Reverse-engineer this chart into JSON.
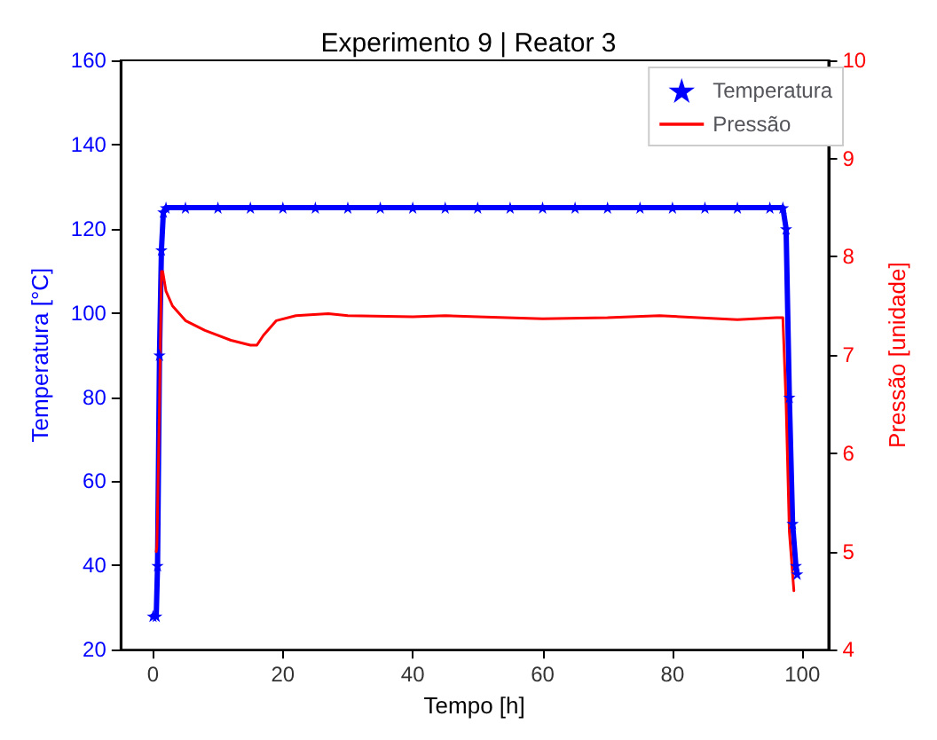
{
  "chart_data": {
    "type": "line",
    "title": "Experimento 9 | Reator 3",
    "xlabel": "Tempo [h]",
    "ylabel": "Temperatura [°C]",
    "y2label": "Pressão [unidade]",
    "xlim": [
      -5,
      104
    ],
    "xticks": [
      0,
      20,
      40,
      60,
      80,
      100
    ],
    "ylim": [
      20,
      160
    ],
    "yticks": [
      20,
      40,
      60,
      80,
      100,
      120,
      140,
      160
    ],
    "y2lim": [
      4,
      10
    ],
    "y2ticks": [
      4,
      5,
      6,
      7,
      8,
      9,
      10
    ],
    "legend": "top right",
    "grid": false,
    "series": [
      {
        "name": "Temperatura",
        "color": "#0000ff",
        "marker": "star",
        "x": [
          0,
          0.5,
          0.7,
          1,
          1.3,
          1.6,
          2,
          5,
          10,
          15,
          20,
          25,
          30,
          35,
          40,
          45,
          50,
          55,
          60,
          65,
          70,
          75,
          80,
          85,
          90,
          95,
          97,
          97.5,
          98,
          98.5,
          99,
          99.2
        ],
        "values": [
          28,
          28,
          40,
          90,
          115,
          124,
          125,
          125,
          125,
          125,
          125,
          125,
          125,
          125,
          125,
          125,
          125,
          125,
          125,
          125,
          125,
          125,
          125,
          125,
          125,
          125,
          125,
          120,
          80,
          50,
          40,
          38
        ]
      },
      {
        "name": "Pressão",
        "color": "#ff0000",
        "axis": "y2",
        "marker": "none",
        "x": [
          0.5,
          0.6,
          1,
          1.3,
          1.5,
          2,
          3,
          5,
          8,
          12,
          15,
          16,
          17,
          19,
          22,
          27,
          30,
          40,
          45,
          50,
          60,
          70,
          78,
          90,
          96,
          97,
          97.5,
          98,
          98.7
        ],
        "values": [
          5.0,
          5.05,
          6.5,
          7.85,
          7.85,
          7.65,
          7.5,
          7.35,
          7.25,
          7.15,
          7.1,
          7.1,
          7.2,
          7.35,
          7.4,
          7.42,
          7.4,
          7.39,
          7.4,
          7.39,
          7.37,
          7.38,
          7.4,
          7.36,
          7.38,
          7.38,
          6.5,
          5.2,
          4.6
        ]
      }
    ]
  }
}
